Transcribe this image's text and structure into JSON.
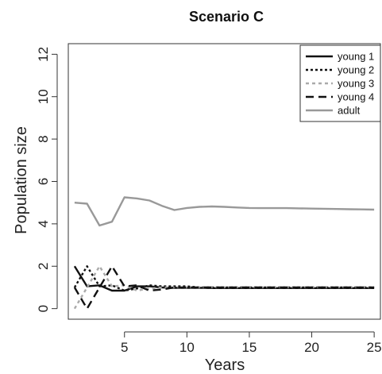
{
  "chart_data": {
    "type": "line",
    "title": "Scenario C",
    "xlabel": "Years",
    "ylabel": "Population size",
    "xlim": [
      0.5,
      25.5
    ],
    "ylim": [
      -0.5,
      12.5
    ],
    "xticks": [
      5,
      10,
      15,
      20,
      25
    ],
    "yticks": [
      0,
      2,
      4,
      6,
      8,
      10,
      12
    ],
    "grid": false,
    "legend_position": "top-right",
    "series": [
      {
        "name": "young 1",
        "color": "#111111",
        "dash": "solid",
        "x": [
          1,
          2,
          3,
          4,
          5,
          6,
          7,
          8,
          9,
          10,
          11,
          12,
          13,
          14,
          15,
          16,
          17,
          18,
          19,
          20,
          21,
          22,
          23,
          24,
          25
        ],
        "y": [
          2.0,
          1.05,
          1.1,
          0.85,
          0.85,
          1.05,
          1.05,
          1.0,
          0.98,
          0.98,
          0.98,
          0.97,
          0.97,
          0.97,
          0.97,
          0.97,
          0.97,
          0.97,
          0.97,
          0.97,
          0.97,
          0.97,
          0.97,
          0.97,
          0.97
        ]
      },
      {
        "name": "young 2",
        "color": "#111111",
        "dash": "dotted",
        "x": [
          1,
          2,
          3,
          4,
          5,
          6,
          7,
          8,
          9,
          10,
          11,
          12,
          13,
          14,
          15,
          16,
          17,
          18,
          19,
          20,
          21,
          22,
          23,
          24,
          25
        ],
        "y": [
          1.0,
          2.0,
          1.05,
          1.1,
          0.85,
          0.95,
          1.1,
          1.05,
          1.05,
          1.05,
          1.0,
          1.0,
          1.0,
          1.0,
          1.0,
          1.0,
          1.0,
          1.0,
          1.0,
          1.0,
          1.0,
          1.0,
          1.0,
          1.0,
          1.0
        ]
      },
      {
        "name": "young 3",
        "color": "#aaaaaa",
        "dash": "shortdash",
        "x": [
          1,
          2,
          3,
          4,
          5,
          6,
          7,
          8,
          9,
          10,
          11,
          12,
          13,
          14,
          15,
          16,
          17,
          18,
          19,
          20,
          21,
          22,
          23,
          24,
          25
        ],
        "y": [
          0.0,
          1.0,
          2.0,
          1.05,
          1.1,
          0.85,
          0.95,
          1.0,
          1.0,
          1.0,
          1.0,
          1.0,
          1.0,
          1.0,
          1.0,
          1.0,
          1.0,
          1.0,
          1.0,
          1.0,
          1.0,
          1.0,
          1.0,
          1.0,
          1.0
        ]
      },
      {
        "name": "young 4",
        "color": "#111111",
        "dash": "longdash",
        "x": [
          1,
          2,
          3,
          4,
          5,
          6,
          7,
          8,
          9,
          10,
          11,
          12,
          13,
          14,
          15,
          16,
          17,
          18,
          19,
          20,
          21,
          22,
          23,
          24,
          25
        ],
        "y": [
          1.0,
          0.0,
          1.0,
          2.0,
          1.05,
          1.1,
          0.85,
          0.9,
          1.0,
          1.0,
          1.0,
          1.0,
          1.0,
          1.0,
          1.0,
          1.0,
          1.0,
          1.0,
          1.0,
          1.0,
          1.0,
          1.0,
          1.0,
          1.0,
          1.0
        ]
      },
      {
        "name": "adult",
        "color": "#999999",
        "dash": "solid",
        "x": [
          1,
          2,
          3,
          4,
          5,
          6,
          7,
          8,
          9,
          10,
          11,
          12,
          13,
          14,
          15,
          16,
          17,
          18,
          19,
          20,
          21,
          22,
          23,
          24,
          25
        ],
        "y": [
          5.0,
          4.95,
          3.92,
          4.1,
          5.25,
          5.2,
          5.1,
          4.85,
          4.65,
          4.75,
          4.8,
          4.82,
          4.8,
          4.77,
          4.75,
          4.74,
          4.74,
          4.74,
          4.73,
          4.72,
          4.71,
          4.7,
          4.69,
          4.68,
          4.67
        ]
      }
    ]
  }
}
